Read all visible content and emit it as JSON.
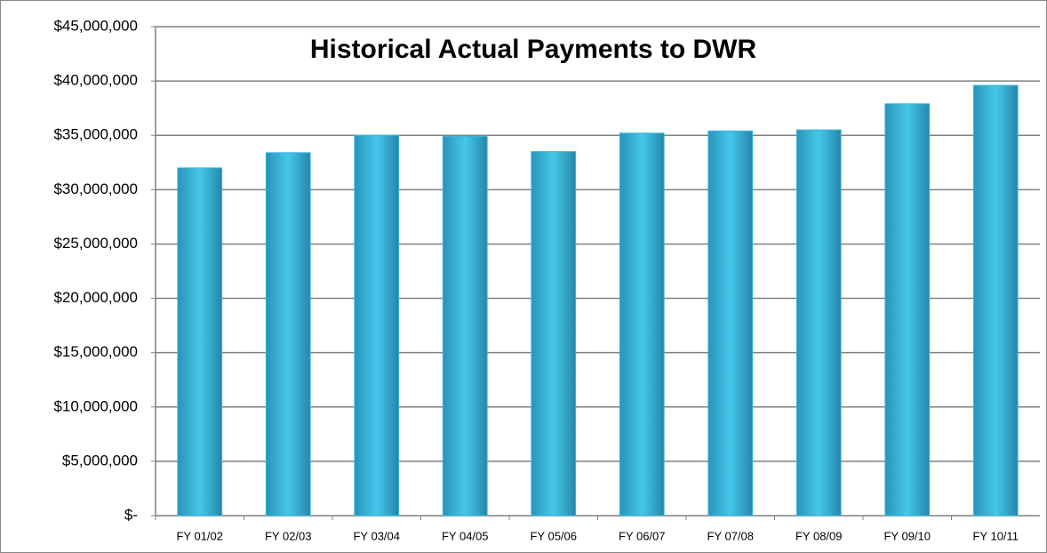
{
  "chart_data": {
    "type": "bar",
    "title": "Historical Actual Payments to DWR",
    "categories": [
      "FY 01/02",
      "FY 02/03",
      "FY 03/04",
      "FY 04/05",
      "FY 05/06",
      "FY 06/07",
      "FY 07/08",
      "FY 08/09",
      "FY 09/10",
      "FY 10/11"
    ],
    "values": [
      32000000,
      33400000,
      35000000,
      34900000,
      33500000,
      35200000,
      35400000,
      35500000,
      37900000,
      39600000
    ],
    "color": "#35b5dc",
    "ylim": [
      0,
      45000000
    ],
    "yticks": [
      {
        "value": 0,
        "label": "$-"
      },
      {
        "value": 5000000,
        "label": "$5,000,000"
      },
      {
        "value": 10000000,
        "label": "$10,000,000"
      },
      {
        "value": 15000000,
        "label": "$15,000,000"
      },
      {
        "value": 20000000,
        "label": "$20,000,000"
      },
      {
        "value": 25000000,
        "label": "$25,000,000"
      },
      {
        "value": 30000000,
        "label": "$30,000,000"
      },
      {
        "value": 35000000,
        "label": "$35,000,000"
      },
      {
        "value": 40000000,
        "label": "$40,000,000"
      },
      {
        "value": 45000000,
        "label": "$45,000,000"
      }
    ],
    "grid": true
  }
}
